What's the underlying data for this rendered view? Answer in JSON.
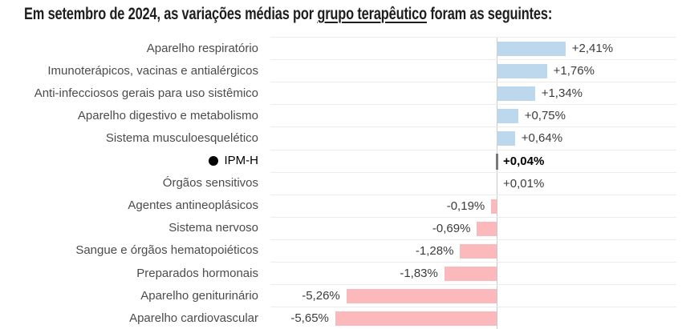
{
  "title": {
    "prefix": "Em setembro de 2024, as variações médias por ",
    "underlined": "grupo terapêutico",
    "suffix": " foram as seguintes:"
  },
  "chart_data": {
    "type": "bar",
    "orientation": "horizontal",
    "title": "Em setembro de 2024, as variações médias por grupo terapêutico foram as seguintes:",
    "unit": "%",
    "decimal_style": "comma",
    "xlim": [
      -7.9,
      6.5
    ],
    "grid": "row-separators",
    "zero_axis_line": true,
    "categories": [
      "Aparelho respiratório",
      "Imunoterápicos, vacinas e antialérgicos",
      "Anti-infecciosos gerais para uso sistêmico",
      "Aparelho digestivo e metabolismo",
      "Sistema musculoesquelético",
      "IPM-H",
      "Órgãos sensitivos",
      "Agentes antineoplásicos",
      "Sistema nervoso",
      "Sangue e órgãos hematopoiéticos",
      "Preparados hormonais",
      "Aparelho geniturinário",
      "Aparelho cardiovascular"
    ],
    "values": [
      2.41,
      1.76,
      1.34,
      0.75,
      0.64,
      0.04,
      0.01,
      -0.19,
      -0.69,
      -1.28,
      -1.83,
      -5.26,
      -5.65
    ],
    "value_labels": [
      "+2,41%",
      "+1,76%",
      "+1,34%",
      "+0,75%",
      "+0,64%",
      "+0,04%",
      "+0,01%",
      "-0,19%",
      "-0,69%",
      "-1,28%",
      "-1,83%",
      "-5,26%",
      "-5,65%"
    ],
    "highlight_index": 5,
    "highlight_marker": "black-dot-bullet-and-gray-tick",
    "colors": {
      "positive_bar": "#bdd7ec",
      "negative_bar": "#fbb9bb",
      "highlight_tick": "#7a7a7a",
      "axis_line": "#c9c9c9",
      "row_separator": "#ececec",
      "category_text": "#4b4b4b",
      "value_text": "#3c3c3c",
      "highlight_text": "#000000",
      "title_text": "#1e1e1e"
    }
  }
}
